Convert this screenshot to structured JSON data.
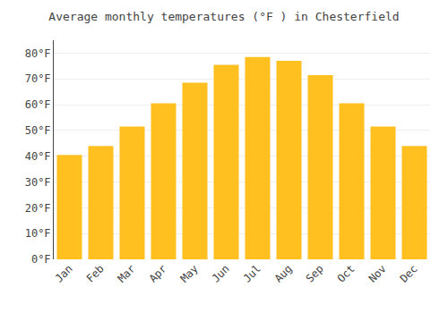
{
  "chart_data": {
    "type": "bar",
    "title": "Average monthly temperatures (°F ) in Chesterfield",
    "categories": [
      "Jan",
      "Feb",
      "Mar",
      "Apr",
      "May",
      "Jun",
      "Jul",
      "Aug",
      "Sep",
      "Oct",
      "Nov",
      "Dec"
    ],
    "values": [
      40.5,
      44.0,
      51.5,
      60.5,
      68.5,
      75.5,
      78.5,
      77.0,
      71.5,
      60.5,
      51.5,
      44.0
    ],
    "color": "#FFC020",
    "ylim": [
      0,
      85
    ],
    "yticks": [
      {
        "value": 0,
        "label": "0°F"
      },
      {
        "value": 10,
        "label": "10°F"
      },
      {
        "value": 20,
        "label": "20°F"
      },
      {
        "value": 30,
        "label": "30°F"
      },
      {
        "value": 40,
        "label": "40°F"
      },
      {
        "value": 50,
        "label": "50°F"
      },
      {
        "value": 60,
        "label": "60°F"
      },
      {
        "value": 70,
        "label": "70°F"
      },
      {
        "value": 80,
        "label": "80°F"
      }
    ],
    "grid": true
  }
}
